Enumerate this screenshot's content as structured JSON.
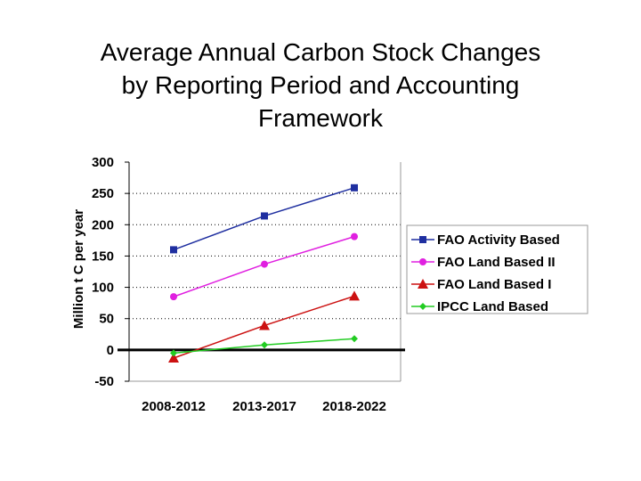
{
  "title_lines": [
    "Average Annual Carbon Stock Changes",
    "by Reporting Period and Accounting",
    "Framework"
  ],
  "chart_data": {
    "type": "line",
    "title": "Average Annual Carbon Stock Changes by Reporting Period and Accounting Framework",
    "xlabel": "",
    "ylabel": "Million t C per year",
    "categories": [
      "2008-2012",
      "2013-2017",
      "2018-2022"
    ],
    "ylim": [
      -50,
      300
    ],
    "yticks": [
      300,
      250,
      200,
      150,
      100,
      50,
      0,
      -50
    ],
    "grid": "horizontal dotted",
    "legend_position": "right",
    "series": [
      {
        "name": "FAO Activity Based",
        "values": [
          160,
          214,
          259
        ],
        "color": "#1f2fa0",
        "marker": "square"
      },
      {
        "name": "FAO Land Based II",
        "values": [
          85,
          137,
          181
        ],
        "color": "#e020e0",
        "marker": "circle"
      },
      {
        "name": "FAO Land Based I",
        "values": [
          -13,
          39,
          86
        ],
        "color": "#cc1111",
        "marker": "triangle"
      },
      {
        "name": "IPCC Land Based",
        "values": [
          -5,
          8,
          18
        ],
        "color": "#22cc22",
        "marker": "diamond"
      }
    ]
  }
}
